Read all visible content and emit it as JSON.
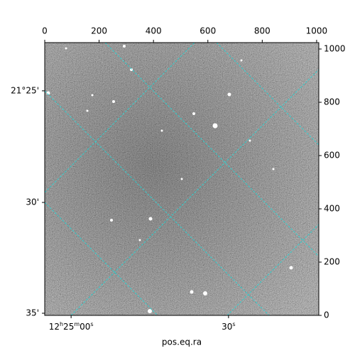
{
  "chart_data": {
    "type": "image",
    "xlabel": "pos.eq.ra",
    "xlim": [
      0,
      1008
    ],
    "ylim": [
      0,
      1024
    ],
    "xticks": [
      0,
      200,
      400,
      600,
      800,
      1000
    ],
    "yticks": [
      0,
      200,
      400,
      600,
      800,
      1000
    ],
    "wcs_xticks": [
      {
        "value": 97,
        "label": "12h25m00s"
      },
      {
        "value": 676,
        "label": "30s"
      }
    ],
    "wcs_yticks": [
      {
        "value": 843,
        "label": "21°25'"
      },
      {
        "value": 424,
        "label": "30'"
      },
      {
        "value": 8,
        "label": "35'"
      }
    ]
  }
}
